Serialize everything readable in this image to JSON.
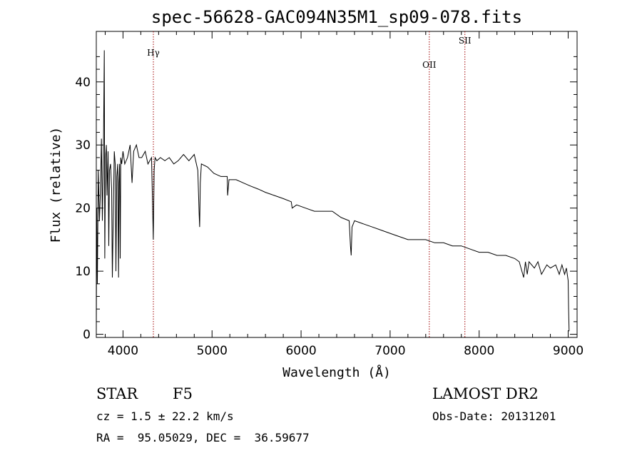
{
  "chart_data": {
    "type": "line",
    "title": "spec-56628-GAC094N35M1_sp09-078.fits",
    "xlabel": "Wavelength (Å)",
    "ylabel": "Flux (relative)",
    "xlim": [
      3700,
      9100
    ],
    "ylim": [
      -0.5,
      48
    ],
    "x_ticks": [
      "4000",
      "5000",
      "6000",
      "7000",
      "8000",
      "9000"
    ],
    "y_ticks": [
      "0",
      "10",
      "20",
      "30",
      "40"
    ],
    "grid": false,
    "series": [
      {
        "x": [
          3700,
          3705,
          3712,
          3722,
          3735,
          3745,
          3752,
          3758,
          3768,
          3780,
          3790,
          3795,
          3803,
          3813,
          3820,
          3832,
          3840,
          3848,
          3860,
          3872,
          3880,
          3890,
          3902,
          3912,
          3920,
          3930,
          3940,
          3950,
          3955,
          3962,
          3968,
          3975,
          3985,
          4000,
          4020,
          4050,
          4080,
          4101,
          4120,
          4150,
          4180,
          4210,
          4250,
          4280,
          4320,
          4330,
          4340,
          4350,
          4360,
          4380,
          4420,
          4470,
          4520,
          4570,
          4620,
          4680,
          4740,
          4800,
          4840,
          4855,
          4861,
          4868,
          4880,
          4950,
          5020,
          5100,
          5170,
          5175,
          5190,
          5270,
          5350,
          5430,
          5520,
          5600,
          5700,
          5800,
          5890,
          5900,
          5950,
          6050,
          6150,
          6250,
          6350,
          6450,
          6540,
          6555,
          6563,
          6572,
          6600,
          6700,
          6800,
          6900,
          7000,
          7100,
          7200,
          7300,
          7400,
          7500,
          7600,
          7700,
          7800,
          7900,
          8000,
          8100,
          8200,
          8300,
          8400,
          8450,
          8500,
          8520,
          8540,
          8560,
          8620,
          8660,
          8700,
          8760,
          8800,
          8860,
          8900,
          8930,
          8960,
          8980,
          9000,
          9005,
          9010
        ],
        "y": [
          0,
          20,
          8,
          26,
          18,
          22,
          27,
          31,
          18,
          29,
          45,
          12,
          28,
          30,
          22,
          29,
          14,
          26,
          27,
          23,
          9,
          18,
          29,
          27,
          10,
          25,
          27,
          9,
          24,
          27,
          12,
          28,
          27,
          29,
          27,
          28,
          30,
          24,
          29,
          30,
          28,
          28,
          29,
          27,
          28,
          22,
          15,
          26,
          28,
          27.5,
          28,
          27.5,
          28,
          27,
          27.5,
          28.5,
          27.5,
          28.5,
          26,
          19,
          17,
          24,
          27,
          26.5,
          25.5,
          25,
          25,
          22,
          24.5,
          24.5,
          24,
          23.5,
          23,
          22.5,
          22,
          21.5,
          21,
          20,
          20.5,
          20,
          19.5,
          19.5,
          19.5,
          18.5,
          18,
          14,
          12.5,
          17,
          18,
          17.5,
          17,
          16.5,
          16,
          15.5,
          15,
          15,
          15,
          14.5,
          14.5,
          14,
          14,
          13.5,
          13,
          13,
          12.5,
          12.5,
          12,
          11.5,
          9,
          11.5,
          9.5,
          11.5,
          10.5,
          11.5,
          9.5,
          11,
          10.5,
          11,
          9.5,
          11,
          9.5,
          10.5,
          8.5,
          4,
          0.5
        ]
      }
    ],
    "lines": [
      {
        "label": "Hγ",
        "x": 4341
      },
      {
        "label": "OII",
        "x": 7440
      },
      {
        "label": "SII",
        "x": 7840
      }
    ]
  },
  "info": {
    "object_class": "STAR",
    "subclass": "F5",
    "survey": "LAMOST DR2",
    "cz": "cz = 1.5 ± 22.2 km/s",
    "obs_date": "Obs-Date: 20131201",
    "coords": "RA =  95.05029, DEC =  36.59677"
  }
}
